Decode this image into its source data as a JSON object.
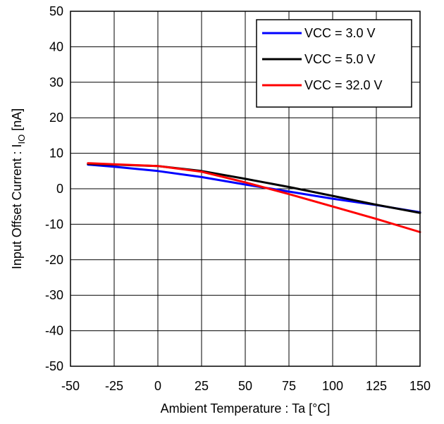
{
  "chart_data": {
    "type": "line",
    "title": "",
    "xlabel": "Ambient Temperature : Ta [°C]",
    "ylabel_prefix": "Input Offset Current : I",
    "ylabel_subscript": "IO",
    "ylabel_suffix": " [nA]",
    "xlim": [
      -50,
      150
    ],
    "ylim": [
      -50,
      50
    ],
    "x_ticks": [
      -50,
      -25,
      0,
      25,
      50,
      75,
      100,
      125,
      150
    ],
    "y_ticks": [
      -50,
      -40,
      -30,
      -20,
      -10,
      0,
      10,
      20,
      30,
      40,
      50
    ],
    "grid": true,
    "legend_position": "top-right",
    "series": [
      {
        "name": "VCC = 3.0 V",
        "color": "#0000ff",
        "x": [
          -40,
          -25,
          0,
          25,
          50,
          75,
          100,
          125,
          150
        ],
        "y": [
          6.8,
          6.2,
          5.0,
          3.3,
          1.2,
          -0.8,
          -2.8,
          -4.6,
          -6.6
        ]
      },
      {
        "name": "VCC = 5.0 V",
        "color": "#000000",
        "x": [
          -40,
          -25,
          0,
          25,
          50,
          75,
          100,
          125,
          150
        ],
        "y": [
          7.0,
          6.8,
          6.4,
          5.0,
          2.8,
          0.5,
          -2.0,
          -4.5,
          -6.8
        ]
      },
      {
        "name": "VCC = 32.0 V",
        "color": "#ff0000",
        "x": [
          -40,
          -25,
          0,
          25,
          50,
          75,
          100,
          125,
          150
        ],
        "y": [
          7.2,
          6.9,
          6.4,
          4.8,
          1.8,
          -1.5,
          -5.0,
          -8.5,
          -12.2
        ]
      }
    ]
  }
}
